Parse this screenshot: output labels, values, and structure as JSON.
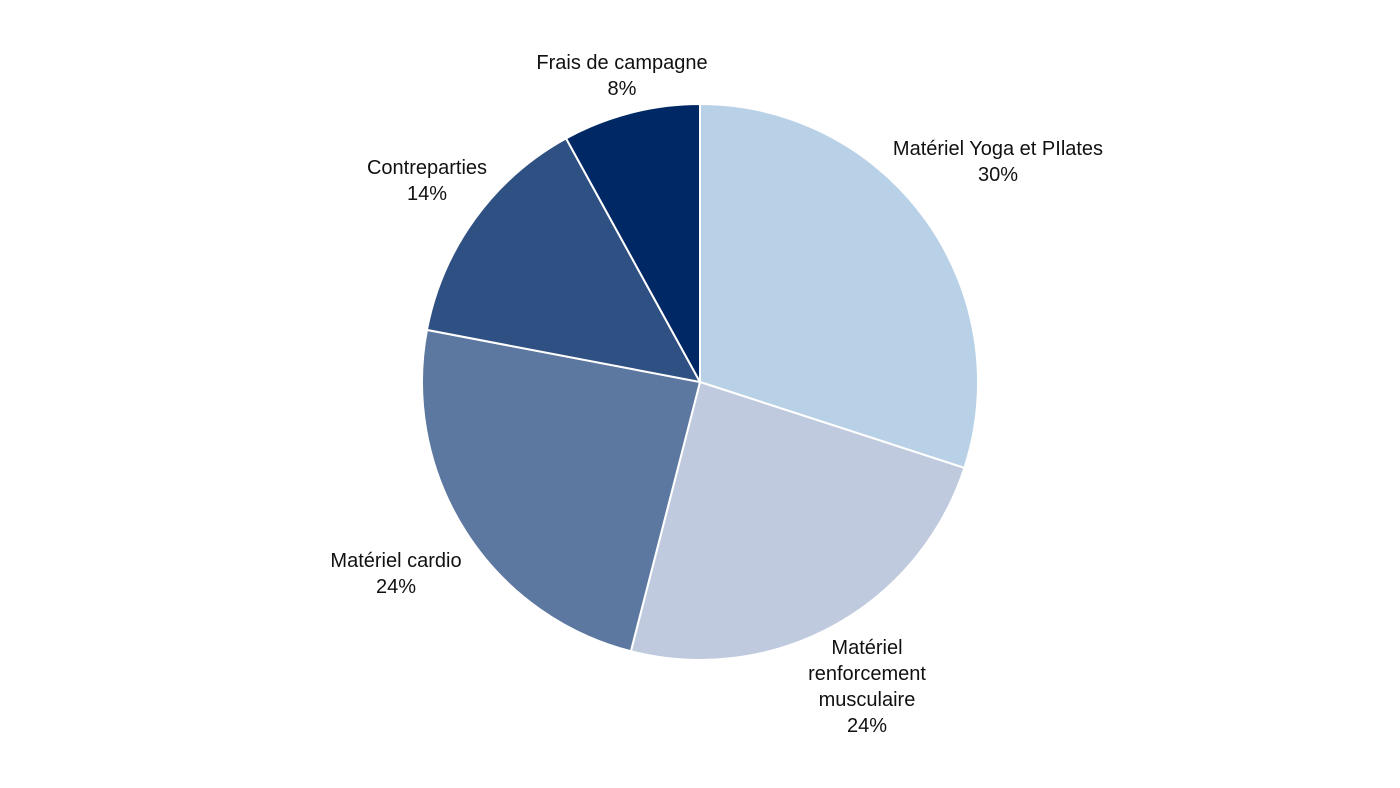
{
  "chart_data": {
    "type": "pie",
    "categories": [
      "Matériel Yoga et PIlates",
      "Matériel renforcement musculaire",
      "Matériel cardio",
      "Contreparties",
      "Frais de campagne"
    ],
    "values": [
      30,
      24,
      24,
      14,
      8
    ],
    "value_labels": [
      "30%",
      "24%",
      "24%",
      "14%",
      "8%"
    ],
    "colors": [
      "#b9d1e6",
      "#bfcadf",
      "#5d78a0",
      "#2f5082",
      "#002864"
    ]
  }
}
